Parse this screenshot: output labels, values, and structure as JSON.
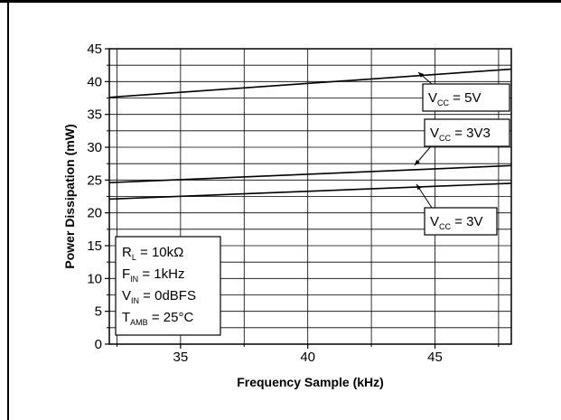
{
  "chart_data": {
    "type": "line",
    "xlabel": "Frequency Sample (kHz)",
    "ylabel": "Power Dissipation (mW)",
    "xlim": [
      32.2,
      48
    ],
    "ylim": [
      0,
      45
    ],
    "xticks": [
      35,
      40,
      45
    ],
    "yticks": [
      0,
      5,
      10,
      15,
      20,
      25,
      30,
      35,
      40,
      45
    ],
    "x_minor_ticks": [
      32.5,
      37.5,
      42.5,
      47.5
    ],
    "grid": true,
    "series": [
      {
        "name": "VCC = 5V",
        "label_main": "V",
        "label_sub": "CC",
        "label_rest": " = 5V",
        "x": [
          32.2,
          48
        ],
        "y": [
          37.6,
          41.9
        ]
      },
      {
        "name": "VCC = 3V3",
        "label_main": "V",
        "label_sub": "CC",
        "label_rest": " = 3V3",
        "x": [
          32.2,
          48
        ],
        "y": [
          24.6,
          27.2
        ]
      },
      {
        "name": "VCC = 3V",
        "label_main": "V",
        "label_sub": "CC",
        "label_rest": " = 3V",
        "x": [
          32.2,
          48
        ],
        "y": [
          22.1,
          24.5
        ]
      }
    ],
    "conditions": [
      {
        "main": "R",
        "sub": "L",
        "rest": " = 10kΩ"
      },
      {
        "main": "F",
        "sub": "IN",
        "rest": " = 1kHz"
      },
      {
        "main": "V",
        "sub": "IN",
        "rest": " = 0dBFS"
      },
      {
        "main": "T",
        "sub": "AMB",
        "rest": " = 25°C"
      }
    ]
  }
}
